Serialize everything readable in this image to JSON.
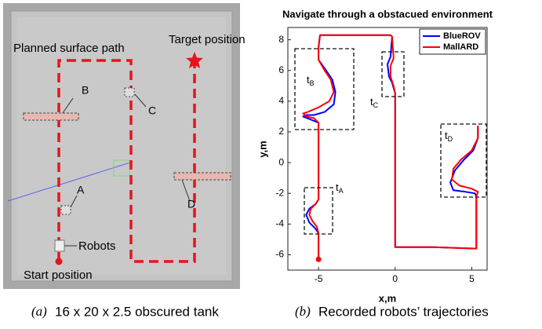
{
  "left_panel": {
    "labels": {
      "path": "Planned surface path",
      "target": "Target position",
      "b": "B",
      "c": "C",
      "a": "A",
      "d": "D",
      "robots": "Robots",
      "start": "Start position"
    },
    "caption": {
      "letter": "(a)",
      "text": "16 x 20 x 2.5 obscured tank"
    }
  },
  "chart_data": {
    "type": "line",
    "title": "Navigate through a obstacued environment",
    "x_label": "x,m",
    "y_label": "y,m",
    "xlim": [
      -7,
      6
    ],
    "ylim": [
      -7,
      8.8
    ],
    "xticks": [
      -5,
      0,
      5
    ],
    "yticks": [
      -6,
      -4,
      -2,
      0,
      2,
      4,
      6,
      8
    ],
    "legend": "upper right",
    "series": [
      {
        "name": "BlueROV",
        "color": "#0000ff",
        "x": [
          -5,
          -5,
          -5.2,
          -5.6,
          -5.8,
          -5.6,
          -5.2,
          -5,
          -5,
          -5,
          -5.5,
          -6,
          -5.8,
          -5.3,
          -4.6,
          -4,
          -3.9,
          -4.1,
          -4.5,
          -5,
          -5,
          -4.9,
          -2,
          -0.3,
          -0.2,
          -0.3,
          -0.5,
          -0.4,
          -0.2,
          0,
          0,
          2.5,
          5.3,
          5.3,
          5.2,
          4.6,
          3.8,
          3.6,
          3.9,
          4.5,
          5.1,
          5.4,
          5.4
        ],
        "y": [
          -6.3,
          -4.6,
          -4.3,
          -3.9,
          -3.4,
          -3,
          -2.7,
          -2.4,
          1.5,
          2.6,
          2.8,
          3,
          3.1,
          3.1,
          3.3,
          3.8,
          4.6,
          5.4,
          6,
          6.7,
          7.5,
          8.3,
          8.3,
          8.3,
          8.2,
          6.9,
          6.4,
          5.6,
          5.2,
          4.5,
          -5.5,
          -5.5,
          -5.6,
          -2.2,
          -2,
          -1.9,
          -1.8,
          -1.3,
          -0.5,
          0.2,
          0.8,
          1.6,
          2.4
        ]
      },
      {
        "name": "MallARD",
        "color": "#ff0000",
        "x": [
          -5,
          -5,
          -5.1,
          -5.4,
          -5.6,
          -5.5,
          -5.2,
          -5,
          -5,
          -5,
          -5.3,
          -5.8,
          -6,
          -5.7,
          -5,
          -4.3,
          -4,
          -4.2,
          -4.6,
          -5,
          -5,
          -4.9,
          -2,
          -0.3,
          -0.2,
          -0.1,
          -0.3,
          -0.3,
          -0.1,
          0,
          0,
          2.5,
          5.3,
          5.3,
          5.4,
          5,
          4.2,
          3.7,
          3.8,
          4.3,
          5,
          5.4,
          5.4
        ],
        "y": [
          -6.3,
          -4.6,
          -4.2,
          -3.8,
          -3.4,
          -3,
          -2.7,
          -2.4,
          1.5,
          2.6,
          2.9,
          3,
          3.2,
          3.3,
          3.6,
          4,
          4.6,
          5.4,
          6,
          6.7,
          7.5,
          8.3,
          8.3,
          8.3,
          8.2,
          6.8,
          6.3,
          5.6,
          5,
          4.5,
          -5.5,
          -5.5,
          -5.6,
          -2.2,
          -1.9,
          -1.7,
          -1.5,
          -1.1,
          -0.4,
          0.2,
          0.8,
          1.6,
          2.4
        ]
      }
    ],
    "annotations": [
      {
        "text": "t",
        "sub": "A"
      },
      {
        "text": "t",
        "sub": "B"
      },
      {
        "text": "t",
        "sub": "C"
      },
      {
        "text": "t",
        "sub": "D"
      }
    ],
    "caption": {
      "letter": "(b)",
      "text": "Recorded robots’ trajectories"
    }
  }
}
